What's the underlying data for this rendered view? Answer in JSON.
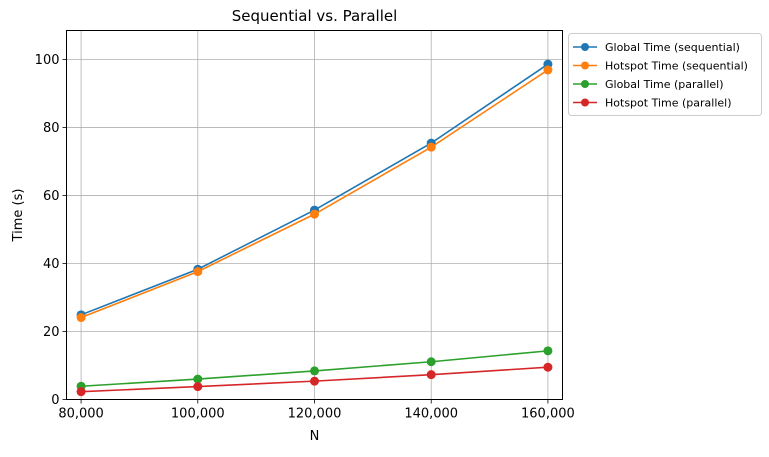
{
  "chart_data": {
    "type": "line",
    "title": "Sequential vs. Parallel",
    "xlabel": "N",
    "ylabel": "Time (s)",
    "x": [
      80000,
      100000,
      120000,
      140000,
      160000
    ],
    "x_tick_labels": [
      "80,000",
      "100,000",
      "120,000",
      "140,000",
      "160,000"
    ],
    "y_ticks": [
      0,
      20,
      40,
      60,
      80,
      100
    ],
    "y_tick_labels": [
      "0",
      "20",
      "40",
      "60",
      "80",
      "100"
    ],
    "xlim": [
      77500,
      162500
    ],
    "ylim": [
      0,
      108.5
    ],
    "grid": true,
    "legend_position": "outside upper right",
    "series": [
      {
        "name": "Global Time (sequential)",
        "color": "#1f77b4",
        "values": [
          24.9,
          38.3,
          55.7,
          75.4,
          98.6
        ]
      },
      {
        "name": "Hotspot Time (sequential)",
        "color": "#ff7f0e",
        "values": [
          24.1,
          37.6,
          54.5,
          74.2,
          96.9
        ]
      },
      {
        "name": "Global Time (parallel)",
        "color": "#2ca02c",
        "values": [
          3.9,
          6.0,
          8.4,
          11.1,
          14.3
        ]
      },
      {
        "name": "Hotspot Time (parallel)",
        "color": "#d62728",
        "values": [
          2.3,
          3.8,
          5.4,
          7.3,
          9.5
        ]
      }
    ]
  }
}
